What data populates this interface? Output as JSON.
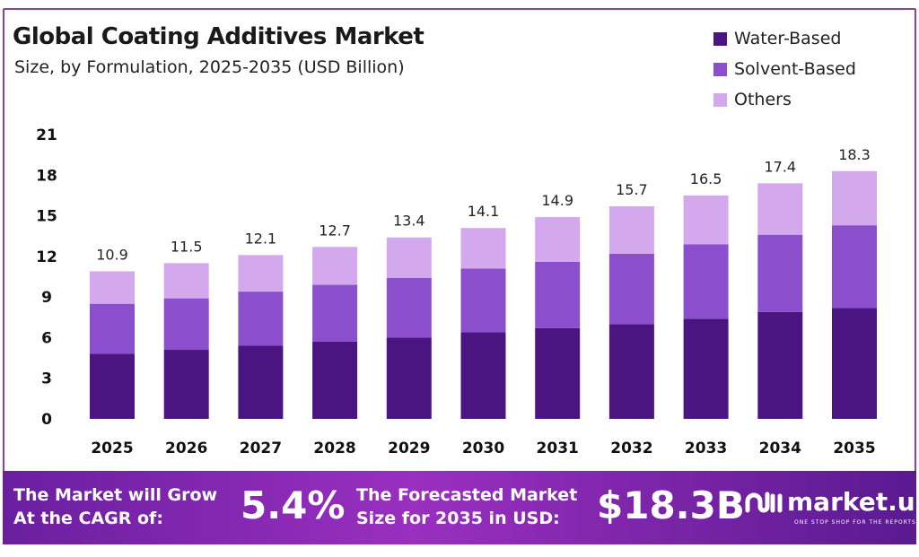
{
  "chart_data": {
    "type": "bar",
    "stacked": true,
    "title": "Global Coating Additives Market",
    "subtitle": "Size, by Formulation, 2025-2035 (USD Billion)",
    "categories": [
      "2025",
      "2026",
      "2027",
      "2028",
      "2029",
      "2030",
      "2031",
      "2032",
      "2033",
      "2034",
      "2035"
    ],
    "series": [
      {
        "name": "Water-Based",
        "color": "#4a1580",
        "values": [
          4.8,
          5.1,
          5.4,
          5.7,
          6.0,
          6.4,
          6.7,
          7.0,
          7.4,
          7.9,
          8.2
        ]
      },
      {
        "name": "Solvent-Based",
        "color": "#8b4fce",
        "values": [
          3.7,
          3.8,
          4.0,
          4.2,
          4.4,
          4.7,
          4.9,
          5.2,
          5.5,
          5.7,
          6.1
        ]
      },
      {
        "name": "Others",
        "color": "#d4a8ec",
        "values": [
          2.4,
          2.6,
          2.7,
          2.8,
          3.0,
          3.0,
          3.3,
          3.5,
          3.6,
          3.8,
          4.0
        ]
      }
    ],
    "totals": [
      "10.9",
      "11.5",
      "12.1",
      "12.7",
      "13.4",
      "14.1",
      "14.9",
      "15.7",
      "16.5",
      "17.4",
      "18.3"
    ],
    "yticks": [
      "0",
      "3",
      "6",
      "9",
      "12",
      "15",
      "18",
      "21"
    ],
    "ylim": [
      0,
      21
    ],
    "grid": false,
    "legend": "top-right"
  },
  "footer": {
    "cagr_label_1": "The Market will Grow",
    "cagr_label_2": "At the CAGR of:",
    "cagr_value": "5.4%",
    "forecast_label_1": "The Forecasted Market",
    "forecast_label_2": "Size for 2035 in USD:",
    "forecast_value": "$18.3B",
    "logo_text": "market.us",
    "logo_tagline": "ONE STOP SHOP FOR THE REPORTS"
  }
}
